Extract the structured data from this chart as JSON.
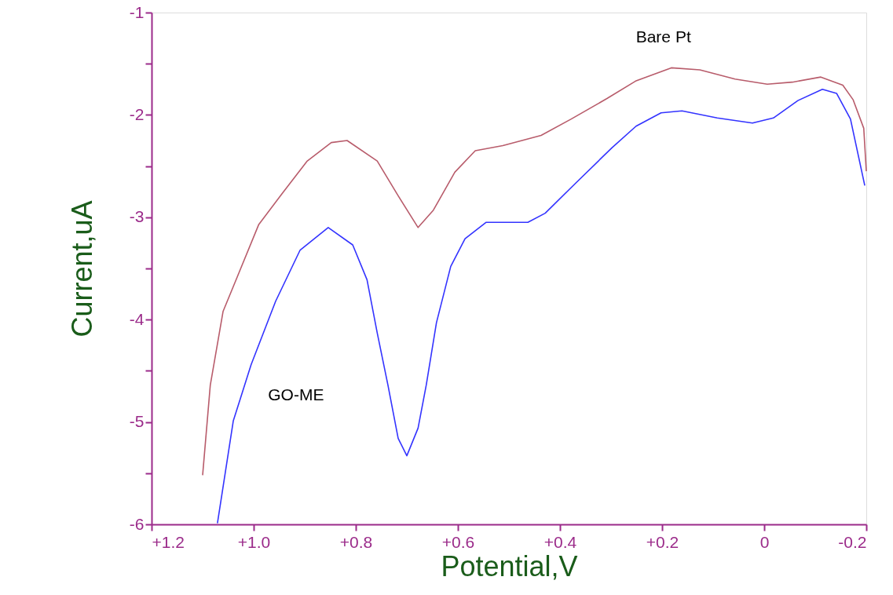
{
  "chart_data": {
    "type": "line",
    "xlabel": "Potential,V",
    "ylabel": "Current,uA",
    "xlim": [
      1.2,
      -0.2
    ],
    "xticks": [
      {
        "value": 1.2,
        "label": "+1.2"
      },
      {
        "value": 1.0,
        "label": "+1.0"
      },
      {
        "value": 0.8,
        "label": "+0.8"
      },
      {
        "value": 0.6,
        "label": "+0.6"
      },
      {
        "value": 0.4,
        "label": "+0.4"
      },
      {
        "value": 0.2,
        "label": "+0.2"
      },
      0,
      -0.2
    ],
    "ylim": [
      -6,
      -1
    ],
    "yticks": [
      -6,
      {
        "value": -5.5,
        "label": null
      },
      -5,
      {
        "value": -4.5,
        "label": null
      },
      -4,
      {
        "value": -3.5,
        "label": null
      },
      -3,
      {
        "value": -2.5,
        "label": null
      },
      -2,
      {
        "value": -1.5,
        "label": null
      },
      -1
    ],
    "grid": false,
    "marker": "none",
    "line_style": "solid",
    "series": [
      {
        "name": "Bare Pt",
        "color": "#b85c6b",
        "x": [
          1.1,
          1.085,
          1.06,
          1.032,
          0.99,
          0.943,
          0.895,
          0.848,
          0.817,
          0.758,
          0.717,
          0.678,
          0.648,
          0.606,
          0.566,
          0.512,
          0.437,
          0.378,
          0.308,
          0.252,
          0.182,
          0.126,
          0.057,
          -0.006,
          -0.055,
          -0.111,
          -0.154,
          -0.174,
          -0.195,
          -0.2
        ],
        "values": [
          -5.52,
          -4.64,
          -3.92,
          -3.58,
          -3.07,
          -2.76,
          -2.45,
          -2.27,
          -2.25,
          -2.45,
          -2.79,
          -3.1,
          -2.93,
          -2.56,
          -2.35,
          -2.3,
          -2.2,
          -2.04,
          -1.84,
          -1.67,
          -1.54,
          -1.56,
          -1.65,
          -1.7,
          -1.68,
          -1.63,
          -1.71,
          -1.85,
          -2.13,
          -2.55
        ]
      },
      {
        "name": "GO-ME",
        "color": "#3333ff",
        "x": [
          1.071,
          1.04,
          1.005,
          0.957,
          0.909,
          0.854,
          0.806,
          0.778,
          0.758,
          0.737,
          0.717,
          0.7,
          0.678,
          0.662,
          0.642,
          0.614,
          0.586,
          0.545,
          0.512,
          0.463,
          0.429,
          0.368,
          0.298,
          0.251,
          0.202,
          0.161,
          0.092,
          0.023,
          -0.018,
          -0.066,
          -0.114,
          -0.142,
          -0.169,
          -0.197
        ],
        "values": [
          -5.99,
          -4.99,
          -4.44,
          -3.82,
          -3.32,
          -3.1,
          -3.27,
          -3.61,
          -4.13,
          -4.64,
          -5.16,
          -5.33,
          -5.06,
          -4.64,
          -4.03,
          -3.48,
          -3.21,
          -3.05,
          -3.05,
          -3.05,
          -2.96,
          -2.66,
          -2.32,
          -2.11,
          -1.98,
          -1.96,
          -2.03,
          -2.08,
          -2.03,
          -1.86,
          -1.75,
          -1.79,
          -2.04,
          -2.69
        ]
      }
    ]
  }
}
